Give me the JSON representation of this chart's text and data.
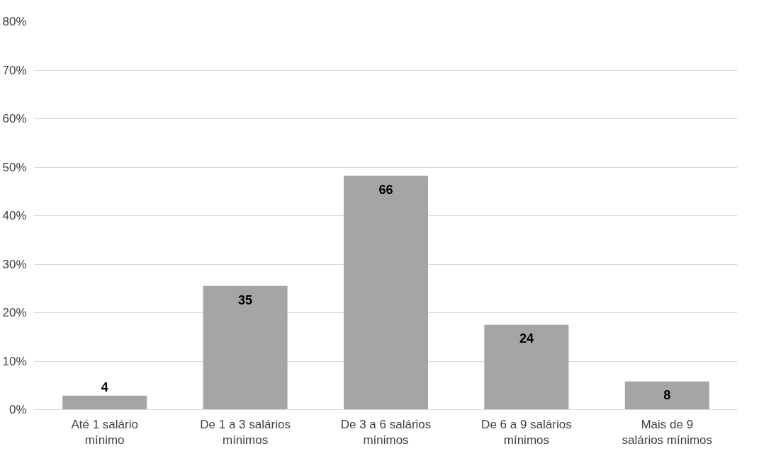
{
  "chart_data": {
    "type": "bar",
    "categories": [
      "Até 1 salário\nmínimo",
      "De 1 a 3 salários\nmínimos",
      "De 3 a 6 salários\nmínimos",
      "De 6 a 9 salários\nmínimos",
      "Mais de 9\nsalários mínimos"
    ],
    "values": [
      2.9,
      25.5,
      48.2,
      17.5,
      5.8
    ],
    "annotations": [
      {
        "text": "4",
        "x": "Até 1 salário\nmínimo",
        "y": 2.9
      },
      {
        "text": "35",
        "x": "De 1 a 3 salários\nmínimos",
        "y": 25.5
      },
      {
        "text": "66",
        "x": "De 3 a 6 salários\nmínimos",
        "y": 48.2
      },
      {
        "text": "24",
        "x": "De 6 a 9 salários\nmínimos",
        "y": 17.5
      },
      {
        "text": "8",
        "x": "Mais de 9\nsalários mínimos",
        "y": 5.8
      }
    ],
    "color": "#a5a5a5",
    "ylim": [
      0,
      80
    ],
    "yticks": [
      {
        "value": 0,
        "label": "0%"
      },
      {
        "value": 10,
        "label": "10%"
      },
      {
        "value": 20,
        "label": "20%"
      },
      {
        "value": 30,
        "label": "30%"
      },
      {
        "value": 40,
        "label": "40%"
      },
      {
        "value": 50,
        "label": "50%"
      },
      {
        "value": 60,
        "label": "60%"
      },
      {
        "value": 70,
        "label": "70%"
      },
      {
        "value": 80,
        "label": "80%"
      }
    ],
    "grid": "y"
  }
}
